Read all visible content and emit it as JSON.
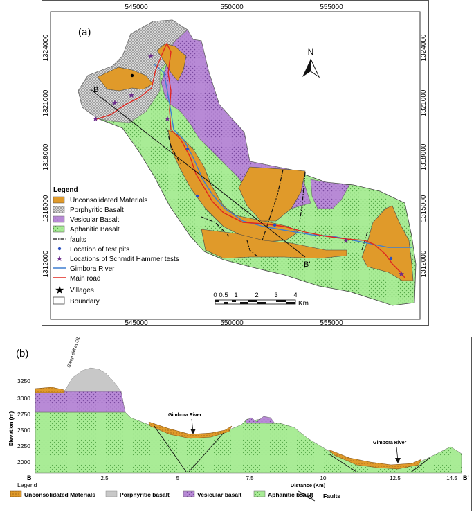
{
  "panel_a": {
    "label": "(a)",
    "x_ticks": [
      "545000",
      "550000",
      "555000"
    ],
    "y_ticks": [
      "1324000",
      "1321000",
      "1318000",
      "1315000",
      "1312000"
    ],
    "north_label": "N",
    "section_start": "B",
    "section_end": "B'",
    "scalebar": {
      "labels": [
        "0",
        "0.5",
        "1",
        "2",
        "3",
        "4"
      ],
      "unit": "Km"
    },
    "legend": {
      "title": "Legend",
      "items": [
        {
          "label": "Unconsolidated Materials",
          "symbol": "orange-fill",
          "color": "#e09a2a"
        },
        {
          "label": "Porphyritic Basalt",
          "symbol": "grey-fill",
          "color": "#cfcfcf"
        },
        {
          "label": "Vesicular Basalt",
          "symbol": "purple-fill",
          "color": "#b88ad6"
        },
        {
          "label": "Aphanitic Basalt",
          "symbol": "green-fill",
          "color": "#a9ec96"
        },
        {
          "label": "faults",
          "symbol": "dash-dot-line",
          "color": "#222222"
        },
        {
          "label": "Location of test pits",
          "symbol": "blue-dot",
          "color": "#2b50c0"
        },
        {
          "label": "Locations of Schmdit Hammer tests",
          "symbol": "purple-star",
          "color": "#6b2a8a"
        },
        {
          "label": "Gimbora River",
          "symbol": "blue-line",
          "color": "#3f7fd0"
        },
        {
          "label": "Main road",
          "symbol": "red-line",
          "color": "#e0261f"
        },
        {
          "label": "Villages",
          "symbol": "black-star",
          "color": "#000000"
        },
        {
          "label": "Boundary",
          "symbol": "empty-box",
          "color": "#ffffff"
        }
      ]
    }
  },
  "panel_b": {
    "label": "(b)",
    "ylabel": "Elevation (m)",
    "xlabel": "Distance (Km)",
    "y_ticks": [
      "3250",
      "3000",
      "2750",
      "2500",
      "2250",
      "2000"
    ],
    "x_ticks": [
      "2.5",
      "5",
      "7.5",
      "10",
      "12.5",
      "14.5"
    ],
    "start_label": "B",
    "end_label": "B'",
    "annotation_cliff": "Steep cliff at Dib area",
    "annotation_river_1": "Gimbora River",
    "annotation_river_2": "Gimbora River",
    "legend": {
      "title": "Legend",
      "items": [
        {
          "label": "Unconsolidated Materials",
          "color": "#e09a2a"
        },
        {
          "label": "Porphyritic basalt",
          "color": "#cfcfcf"
        },
        {
          "label": "Vesicular basalt",
          "color": "#b88ad6"
        },
        {
          "label": "Aphanitic bsaslt",
          "color": "#a9ec96"
        }
      ],
      "faults_label": "Faults"
    }
  }
}
